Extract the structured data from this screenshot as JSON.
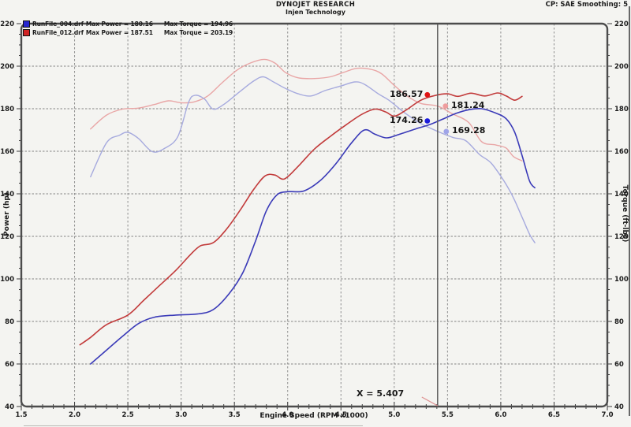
{
  "header": {
    "title": "DYNOJET RESEARCH",
    "subtitle": "Injen Technology",
    "right_info": "CP: SAE  Smoothing: 5"
  },
  "legend": {
    "rows": [
      {
        "file": "RunFile_004.drf",
        "power": "Max Power = 180.16",
        "torque": "Max Torque = 194.96",
        "color": "#2626cf"
      },
      {
        "file": "RunFile_012.drf",
        "power": "Max Power = 187.51",
        "torque": "Max Torque = 203.19",
        "color": "#d02424"
      }
    ]
  },
  "cursor": {
    "label": "X = 5.407",
    "x": 5.407
  },
  "markers": [
    {
      "label": "186.57",
      "value": 186.57,
      "series": "RunFile_012 Power",
      "side": "left",
      "dot_color": "#e01212",
      "dot_x_offset": -13
    },
    {
      "label": "181.24",
      "value": 181.24,
      "series": "RunFile_012 Torque",
      "side": "right",
      "dot_color": "#ef9d9d",
      "dot_x_offset": 10
    },
    {
      "label": "174.26",
      "value": 174.26,
      "series": "RunFile_004 Power",
      "side": "left",
      "dot_color": "#1c1cdc",
      "dot_x_offset": -13
    },
    {
      "label": "169.28",
      "value": 169.28,
      "series": "RunFile_004 Torque",
      "side": "right",
      "dot_color": "#9fa4e8",
      "dot_x_offset": 11
    }
  ],
  "chart_data": {
    "type": "line",
    "title": "",
    "xlabel": "Engine Speed (RPM x1000)",
    "ylabel_left": "Power (hp)",
    "ylabel_right": "Torque (ft-lbs)",
    "xlim": [
      1.5,
      7.0
    ],
    "ylim": [
      40,
      220
    ],
    "x_major_ticks": [
      1.5,
      2.0,
      2.5,
      3.0,
      3.5,
      4.0,
      4.5,
      5.0,
      5.5,
      6.0,
      6.5,
      7.0
    ],
    "y_major_ticks": [
      40,
      60,
      80,
      100,
      120,
      140,
      160,
      180,
      200,
      220
    ],
    "x_minor_step": 0.1,
    "y_minor_step": 5,
    "grid": true,
    "legend_position": "top-left",
    "cursor_x": 5.407,
    "series": [
      {
        "name": "RunFile_012 Torque",
        "unit": "ft-lbs",
        "color": "#e9a6a6",
        "width": 1.4,
        "points": [
          [
            2.15,
            170.5
          ],
          [
            2.3,
            177
          ],
          [
            2.45,
            179.8
          ],
          [
            2.6,
            180.3
          ],
          [
            2.75,
            182
          ],
          [
            2.88,
            183.7
          ],
          [
            3.0,
            182.8
          ],
          [
            3.12,
            183.2
          ],
          [
            3.25,
            186
          ],
          [
            3.38,
            192
          ],
          [
            3.52,
            198
          ],
          [
            3.65,
            201.5
          ],
          [
            3.78,
            203.2
          ],
          [
            3.88,
            201.5
          ],
          [
            3.98,
            197
          ],
          [
            4.1,
            194.5
          ],
          [
            4.25,
            194.2
          ],
          [
            4.4,
            195
          ],
          [
            4.52,
            197
          ],
          [
            4.65,
            199
          ],
          [
            4.78,
            198.5
          ],
          [
            4.88,
            196.5
          ],
          [
            5.0,
            191
          ],
          [
            5.12,
            186
          ],
          [
            5.25,
            182.5
          ],
          [
            5.41,
            181.2
          ],
          [
            5.55,
            177.5
          ],
          [
            5.7,
            173.5
          ],
          [
            5.82,
            164.5
          ],
          [
            5.95,
            163
          ],
          [
            6.05,
            161.5
          ],
          [
            6.12,
            157.5
          ],
          [
            6.2,
            155.5
          ]
        ]
      },
      {
        "name": "RunFile_004 Torque",
        "unit": "ft-lbs",
        "color": "#a6aade",
        "width": 1.4,
        "points": [
          [
            2.15,
            148
          ],
          [
            2.3,
            164
          ],
          [
            2.42,
            167.5
          ],
          [
            2.5,
            168.9
          ],
          [
            2.6,
            166
          ],
          [
            2.73,
            159.8
          ],
          [
            2.85,
            161.5
          ],
          [
            2.97,
            167
          ],
          [
            3.07,
            183
          ],
          [
            3.13,
            186.3
          ],
          [
            3.22,
            184.5
          ],
          [
            3.3,
            179.8
          ],
          [
            3.4,
            182
          ],
          [
            3.55,
            188
          ],
          [
            3.68,
            193
          ],
          [
            3.77,
            195
          ],
          [
            3.87,
            192.5
          ],
          [
            3.98,
            189.5
          ],
          [
            4.1,
            187
          ],
          [
            4.22,
            186
          ],
          [
            4.35,
            188.5
          ],
          [
            4.5,
            190.7
          ],
          [
            4.63,
            192.6
          ],
          [
            4.72,
            191.5
          ],
          [
            4.85,
            187
          ],
          [
            4.95,
            184
          ],
          [
            5.1,
            178
          ],
          [
            5.25,
            173
          ],
          [
            5.41,
            169.3
          ],
          [
            5.55,
            166.5
          ],
          [
            5.67,
            165
          ],
          [
            5.8,
            158.5
          ],
          [
            5.91,
            154.4
          ],
          [
            6.03,
            146
          ],
          [
            6.12,
            138
          ],
          [
            6.2,
            129
          ],
          [
            6.27,
            121
          ],
          [
            6.32,
            117
          ]
        ]
      },
      {
        "name": "RunFile_012 Power",
        "unit": "hp",
        "color": "#c23b3b",
        "width": 1.6,
        "points": [
          [
            2.05,
            69
          ],
          [
            2.15,
            72.5
          ],
          [
            2.3,
            78.5
          ],
          [
            2.5,
            83
          ],
          [
            2.65,
            90
          ],
          [
            2.8,
            97
          ],
          [
            2.95,
            104
          ],
          [
            3.08,
            111
          ],
          [
            3.18,
            115.5
          ],
          [
            3.3,
            117
          ],
          [
            3.42,
            123
          ],
          [
            3.55,
            132
          ],
          [
            3.68,
            142
          ],
          [
            3.79,
            148.5
          ],
          [
            3.88,
            148.8
          ],
          [
            3.97,
            147
          ],
          [
            4.1,
            153
          ],
          [
            4.25,
            161
          ],
          [
            4.4,
            167
          ],
          [
            4.55,
            172.5
          ],
          [
            4.7,
            177.5
          ],
          [
            4.82,
            179.8
          ],
          [
            4.92,
            178.5
          ],
          [
            5.0,
            176.5
          ],
          [
            5.1,
            179
          ],
          [
            5.25,
            184
          ],
          [
            5.38,
            186.2
          ],
          [
            5.5,
            187
          ],
          [
            5.6,
            185.8
          ],
          [
            5.72,
            187.3
          ],
          [
            5.85,
            186
          ],
          [
            5.97,
            187.4
          ],
          [
            6.05,
            186
          ],
          [
            6.13,
            184
          ],
          [
            6.2,
            185.8
          ]
        ]
      },
      {
        "name": "RunFile_004 Power",
        "unit": "hp",
        "color": "#3a3ab8",
        "width": 1.6,
        "points": [
          [
            2.15,
            60
          ],
          [
            2.3,
            66.5
          ],
          [
            2.45,
            73
          ],
          [
            2.6,
            79
          ],
          [
            2.75,
            82
          ],
          [
            2.95,
            83
          ],
          [
            3.15,
            83.5
          ],
          [
            3.3,
            85.5
          ],
          [
            3.45,
            93
          ],
          [
            3.58,
            103
          ],
          [
            3.7,
            118
          ],
          [
            3.8,
            132
          ],
          [
            3.9,
            139.5
          ],
          [
            4.0,
            141
          ],
          [
            4.15,
            141.3
          ],
          [
            4.3,
            146
          ],
          [
            4.45,
            154
          ],
          [
            4.6,
            164
          ],
          [
            4.72,
            170
          ],
          [
            4.82,
            168
          ],
          [
            4.93,
            166.3
          ],
          [
            5.05,
            168
          ],
          [
            5.2,
            170.5
          ],
          [
            5.33,
            172.5
          ],
          [
            5.45,
            175
          ],
          [
            5.58,
            177.8
          ],
          [
            5.7,
            179.5
          ],
          [
            5.82,
            180
          ],
          [
            5.95,
            178
          ],
          [
            6.05,
            175.3
          ],
          [
            6.13,
            169
          ],
          [
            6.2,
            158
          ],
          [
            6.27,
            146
          ],
          [
            6.32,
            142.8
          ]
        ]
      }
    ]
  }
}
